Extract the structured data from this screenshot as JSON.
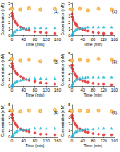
{
  "chart_data": [
    {
      "type": "scatter",
      "title": "(1)",
      "x_label": "Time (min)",
      "y_label": "Concentration (mM)",
      "x": [
        0,
        2,
        5,
        10,
        15,
        20,
        30,
        40,
        50,
        60,
        80,
        100,
        120,
        150
      ],
      "xlim": [
        0,
        160
      ],
      "xticks": [
        0,
        40,
        80,
        120,
        160
      ],
      "ylim": [
        0,
        5
      ],
      "yticks": [
        0,
        1,
        2,
        3,
        4,
        5
      ],
      "series": [
        {
          "color": "#e41a1c",
          "marker": "circle",
          "values": [
            3.4,
            3.0,
            2.6,
            2.2,
            1.9,
            1.6,
            1.3,
            1.1,
            0.9,
            0.8,
            0.6,
            0.5,
            0.4,
            0.3
          ]
        },
        {
          "color": "#1fb5d6",
          "marker": "triangle",
          "values": [
            0,
            0.2,
            0.4,
            0.6,
            0.8,
            0.9,
            1.0,
            1.1,
            1.1,
            1.2,
            1.2,
            1.2,
            1.2,
            1.2
          ]
        },
        {
          "color": "#f5a623",
          "marker": "emptyCircle",
          "values": [
            4.1,
            null,
            null,
            null,
            null,
            null,
            4.0,
            null,
            null,
            4.2,
            null,
            4.0,
            null,
            4.1
          ]
        }
      ]
    },
    {
      "type": "scatter",
      "title": "(2)",
      "x_label": "Time (min)",
      "y_label": "Concentration (mM)",
      "x": [
        0,
        2,
        5,
        10,
        15,
        20,
        30,
        40,
        50,
        60,
        80,
        100,
        120,
        150
      ],
      "xlim": [
        0,
        160
      ],
      "xticks": [
        0,
        40,
        80,
        120,
        160
      ],
      "ylim": [
        0,
        5
      ],
      "yticks": [
        0,
        1,
        2,
        3,
        4,
        5
      ],
      "series": [
        {
          "color": "#e41a1c",
          "marker": "circle",
          "values": [
            3.3,
            2.8,
            2.4,
            2.0,
            1.7,
            1.4,
            1.1,
            0.9,
            0.8,
            0.7,
            0.5,
            0.4,
            0.3,
            0.3
          ]
        },
        {
          "color": "#1fb5d6",
          "marker": "triangle",
          "values": [
            0,
            0.3,
            0.5,
            0.7,
            0.9,
            1.0,
            1.1,
            1.2,
            1.2,
            1.3,
            1.3,
            1.3,
            1.3,
            1.3
          ]
        },
        {
          "color": "#f5a623",
          "marker": "emptyCircle",
          "values": [
            4.0,
            null,
            null,
            null,
            null,
            null,
            4.1,
            null,
            null,
            3.9,
            null,
            4.1,
            null,
            4.0
          ]
        }
      ]
    },
    {
      "type": "scatter",
      "title": "(3)",
      "x_label": "Time (min)",
      "y_label": "Concentration (mM)",
      "x": [
        0,
        2,
        5,
        10,
        15,
        20,
        30,
        40,
        50,
        60,
        80,
        100,
        120,
        150
      ],
      "xlim": [
        0,
        160
      ],
      "xticks": [
        0,
        40,
        80,
        120,
        160
      ],
      "ylim": [
        0,
        5
      ],
      "yticks": [
        0,
        1,
        2,
        3,
        4,
        5
      ],
      "series": [
        {
          "color": "#e41a1c",
          "marker": "circle",
          "values": [
            3.5,
            3.1,
            2.7,
            2.3,
            2.0,
            1.8,
            1.5,
            1.2,
            1.0,
            0.9,
            0.7,
            0.5,
            0.4,
            0.3
          ]
        },
        {
          "color": "#1fb5d6",
          "marker": "triangle",
          "values": [
            0,
            0.2,
            0.3,
            0.5,
            0.7,
            0.8,
            0.9,
            1.0,
            1.1,
            1.1,
            1.2,
            1.2,
            1.2,
            1.2
          ]
        },
        {
          "color": "#f5a623",
          "marker": "emptyCircle",
          "values": [
            4.2,
            null,
            null,
            null,
            null,
            null,
            4.0,
            null,
            null,
            4.1,
            null,
            3.9,
            null,
            4.0
          ]
        }
      ]
    },
    {
      "type": "scatter",
      "title": "(4)",
      "x_label": "Time (min)",
      "y_label": "Concentration (mM)",
      "x": [
        0,
        2,
        5,
        10,
        15,
        20,
        30,
        40,
        50,
        60,
        80,
        100,
        120,
        150
      ],
      "xlim": [
        0,
        160
      ],
      "xticks": [
        0,
        40,
        80,
        120,
        160
      ],
      "ylim": [
        0,
        5
      ],
      "yticks": [
        0,
        1,
        2,
        3,
        4,
        5
      ],
      "series": [
        {
          "color": "#e41a1c",
          "marker": "circle",
          "values": [
            3.2,
            2.7,
            2.3,
            1.9,
            1.6,
            1.3,
            1.0,
            0.8,
            0.7,
            0.6,
            0.4,
            0.3,
            0.3,
            0.2
          ]
        },
        {
          "color": "#1fb5d6",
          "marker": "triangle",
          "values": [
            0,
            0.3,
            0.5,
            0.8,
            1.0,
            1.1,
            1.2,
            1.3,
            1.3,
            1.4,
            1.4,
            1.4,
            1.4,
            1.4
          ]
        },
        {
          "color": "#f5a623",
          "marker": "emptyCircle",
          "values": [
            4.0,
            null,
            null,
            null,
            null,
            null,
            4.1,
            null,
            null,
            4.0,
            null,
            4.2,
            null,
            4.1
          ]
        }
      ]
    },
    {
      "type": "scatter",
      "title": "(5)",
      "x_label": "Time (min)",
      "y_label": "Concentration (mM)",
      "x": [
        0,
        2,
        5,
        10,
        15,
        20,
        30,
        40,
        50,
        60,
        80,
        100,
        120,
        150
      ],
      "xlim": [
        0,
        160
      ],
      "xticks": [
        0,
        40,
        80,
        120,
        160
      ],
      "ylim": [
        0,
        5
      ],
      "yticks": [
        0,
        1,
        2,
        3,
        4,
        5
      ],
      "series": [
        {
          "color": "#e41a1c",
          "marker": "circle",
          "values": [
            3.4,
            2.9,
            2.5,
            2.1,
            1.8,
            1.5,
            1.2,
            1.0,
            0.9,
            0.8,
            0.6,
            0.4,
            0.4,
            0.3
          ]
        },
        {
          "color": "#1fb5d6",
          "marker": "triangle",
          "values": [
            0,
            0.2,
            0.4,
            0.6,
            0.8,
            1.0,
            1.1,
            1.1,
            1.2,
            1.2,
            1.3,
            1.3,
            1.3,
            1.3
          ]
        },
        {
          "color": "#f5a623",
          "marker": "emptyCircle",
          "values": [
            4.1,
            null,
            null,
            null,
            null,
            null,
            3.9,
            null,
            null,
            4.1,
            null,
            4.0,
            null,
            4.2
          ]
        }
      ]
    },
    {
      "type": "scatter",
      "title": "(6)",
      "x_label": "Time (min)",
      "y_label": "Concentration (mM)",
      "x": [
        0,
        2,
        5,
        10,
        15,
        20,
        30,
        40,
        50,
        60,
        80,
        100,
        120,
        150
      ],
      "xlim": [
        0,
        160
      ],
      "xticks": [
        0,
        40,
        80,
        120,
        160
      ],
      "ylim": [
        0,
        5
      ],
      "yticks": [
        0,
        1,
        2,
        3,
        4,
        5
      ],
      "series": [
        {
          "color": "#e41a1c",
          "marker": "circle",
          "values": [
            3.3,
            2.9,
            2.5,
            2.1,
            1.8,
            1.5,
            1.2,
            1.0,
            0.8,
            0.7,
            0.5,
            0.4,
            0.3,
            0.3
          ]
        },
        {
          "color": "#1fb5d6",
          "marker": "triangle",
          "values": [
            0,
            0.2,
            0.4,
            0.6,
            0.8,
            0.9,
            1.0,
            1.1,
            1.2,
            1.2,
            1.2,
            1.3,
            1.3,
            1.3
          ]
        },
        {
          "color": "#f5a623",
          "marker": "emptyCircle",
          "values": [
            4.0,
            null,
            null,
            null,
            null,
            null,
            4.1,
            null,
            null,
            4.0,
            null,
            4.1,
            null,
            3.9
          ]
        }
      ]
    }
  ]
}
